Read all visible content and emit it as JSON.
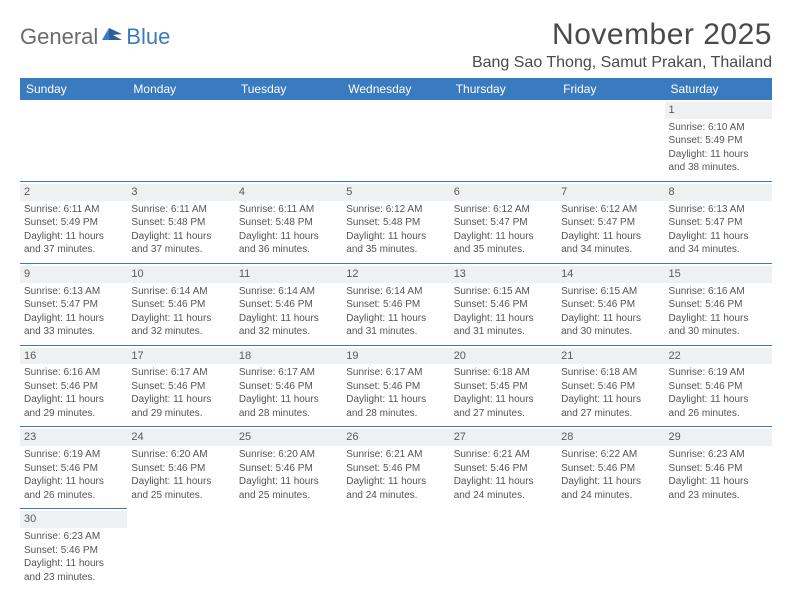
{
  "logo": {
    "general": "General",
    "blue": "Blue"
  },
  "title": "November 2025",
  "location": "Bang Sao Thong, Samut Prakan, Thailand",
  "colors": {
    "header_bg": "#3a7bc0",
    "header_text": "#ffffff",
    "daynum_bg": "#eef0f2",
    "border": "#3a7bc0",
    "body_text": "#555555",
    "title_text": "#4a4a4a",
    "logo_gray": "#6b6b6b",
    "logo_blue": "#3a7bc0",
    "background": "#ffffff"
  },
  "typography": {
    "title_fontsize": 30,
    "location_fontsize": 16,
    "header_fontsize": 12,
    "cell_fontsize": 10,
    "daynum_fontsize": 11
  },
  "day_headers": [
    "Sunday",
    "Monday",
    "Tuesday",
    "Wednesday",
    "Thursday",
    "Friday",
    "Saturday"
  ],
  "weeks": [
    [
      null,
      null,
      null,
      null,
      null,
      null,
      {
        "n": "1",
        "sr": "Sunrise: 6:10 AM",
        "ss": "Sunset: 5:49 PM",
        "dl1": "Daylight: 11 hours",
        "dl2": "and 38 minutes."
      }
    ],
    [
      {
        "n": "2",
        "sr": "Sunrise: 6:11 AM",
        "ss": "Sunset: 5:49 PM",
        "dl1": "Daylight: 11 hours",
        "dl2": "and 37 minutes."
      },
      {
        "n": "3",
        "sr": "Sunrise: 6:11 AM",
        "ss": "Sunset: 5:48 PM",
        "dl1": "Daylight: 11 hours",
        "dl2": "and 37 minutes."
      },
      {
        "n": "4",
        "sr": "Sunrise: 6:11 AM",
        "ss": "Sunset: 5:48 PM",
        "dl1": "Daylight: 11 hours",
        "dl2": "and 36 minutes."
      },
      {
        "n": "5",
        "sr": "Sunrise: 6:12 AM",
        "ss": "Sunset: 5:48 PM",
        "dl1": "Daylight: 11 hours",
        "dl2": "and 35 minutes."
      },
      {
        "n": "6",
        "sr": "Sunrise: 6:12 AM",
        "ss": "Sunset: 5:47 PM",
        "dl1": "Daylight: 11 hours",
        "dl2": "and 35 minutes."
      },
      {
        "n": "7",
        "sr": "Sunrise: 6:12 AM",
        "ss": "Sunset: 5:47 PM",
        "dl1": "Daylight: 11 hours",
        "dl2": "and 34 minutes."
      },
      {
        "n": "8",
        "sr": "Sunrise: 6:13 AM",
        "ss": "Sunset: 5:47 PM",
        "dl1": "Daylight: 11 hours",
        "dl2": "and 34 minutes."
      }
    ],
    [
      {
        "n": "9",
        "sr": "Sunrise: 6:13 AM",
        "ss": "Sunset: 5:47 PM",
        "dl1": "Daylight: 11 hours",
        "dl2": "and 33 minutes."
      },
      {
        "n": "10",
        "sr": "Sunrise: 6:14 AM",
        "ss": "Sunset: 5:46 PM",
        "dl1": "Daylight: 11 hours",
        "dl2": "and 32 minutes."
      },
      {
        "n": "11",
        "sr": "Sunrise: 6:14 AM",
        "ss": "Sunset: 5:46 PM",
        "dl1": "Daylight: 11 hours",
        "dl2": "and 32 minutes."
      },
      {
        "n": "12",
        "sr": "Sunrise: 6:14 AM",
        "ss": "Sunset: 5:46 PM",
        "dl1": "Daylight: 11 hours",
        "dl2": "and 31 minutes."
      },
      {
        "n": "13",
        "sr": "Sunrise: 6:15 AM",
        "ss": "Sunset: 5:46 PM",
        "dl1": "Daylight: 11 hours",
        "dl2": "and 31 minutes."
      },
      {
        "n": "14",
        "sr": "Sunrise: 6:15 AM",
        "ss": "Sunset: 5:46 PM",
        "dl1": "Daylight: 11 hours",
        "dl2": "and 30 minutes."
      },
      {
        "n": "15",
        "sr": "Sunrise: 6:16 AM",
        "ss": "Sunset: 5:46 PM",
        "dl1": "Daylight: 11 hours",
        "dl2": "and 30 minutes."
      }
    ],
    [
      {
        "n": "16",
        "sr": "Sunrise: 6:16 AM",
        "ss": "Sunset: 5:46 PM",
        "dl1": "Daylight: 11 hours",
        "dl2": "and 29 minutes."
      },
      {
        "n": "17",
        "sr": "Sunrise: 6:17 AM",
        "ss": "Sunset: 5:46 PM",
        "dl1": "Daylight: 11 hours",
        "dl2": "and 29 minutes."
      },
      {
        "n": "18",
        "sr": "Sunrise: 6:17 AM",
        "ss": "Sunset: 5:46 PM",
        "dl1": "Daylight: 11 hours",
        "dl2": "and 28 minutes."
      },
      {
        "n": "19",
        "sr": "Sunrise: 6:17 AM",
        "ss": "Sunset: 5:46 PM",
        "dl1": "Daylight: 11 hours",
        "dl2": "and 28 minutes."
      },
      {
        "n": "20",
        "sr": "Sunrise: 6:18 AM",
        "ss": "Sunset: 5:45 PM",
        "dl1": "Daylight: 11 hours",
        "dl2": "and 27 minutes."
      },
      {
        "n": "21",
        "sr": "Sunrise: 6:18 AM",
        "ss": "Sunset: 5:46 PM",
        "dl1": "Daylight: 11 hours",
        "dl2": "and 27 minutes."
      },
      {
        "n": "22",
        "sr": "Sunrise: 6:19 AM",
        "ss": "Sunset: 5:46 PM",
        "dl1": "Daylight: 11 hours",
        "dl2": "and 26 minutes."
      }
    ],
    [
      {
        "n": "23",
        "sr": "Sunrise: 6:19 AM",
        "ss": "Sunset: 5:46 PM",
        "dl1": "Daylight: 11 hours",
        "dl2": "and 26 minutes."
      },
      {
        "n": "24",
        "sr": "Sunrise: 6:20 AM",
        "ss": "Sunset: 5:46 PM",
        "dl1": "Daylight: 11 hours",
        "dl2": "and 25 minutes."
      },
      {
        "n": "25",
        "sr": "Sunrise: 6:20 AM",
        "ss": "Sunset: 5:46 PM",
        "dl1": "Daylight: 11 hours",
        "dl2": "and 25 minutes."
      },
      {
        "n": "26",
        "sr": "Sunrise: 6:21 AM",
        "ss": "Sunset: 5:46 PM",
        "dl1": "Daylight: 11 hours",
        "dl2": "and 24 minutes."
      },
      {
        "n": "27",
        "sr": "Sunrise: 6:21 AM",
        "ss": "Sunset: 5:46 PM",
        "dl1": "Daylight: 11 hours",
        "dl2": "and 24 minutes."
      },
      {
        "n": "28",
        "sr": "Sunrise: 6:22 AM",
        "ss": "Sunset: 5:46 PM",
        "dl1": "Daylight: 11 hours",
        "dl2": "and 24 minutes."
      },
      {
        "n": "29",
        "sr": "Sunrise: 6:23 AM",
        "ss": "Sunset: 5:46 PM",
        "dl1": "Daylight: 11 hours",
        "dl2": "and 23 minutes."
      }
    ],
    [
      {
        "n": "30",
        "sr": "Sunrise: 6:23 AM",
        "ss": "Sunset: 5:46 PM",
        "dl1": "Daylight: 11 hours",
        "dl2": "and 23 minutes."
      },
      null,
      null,
      null,
      null,
      null,
      null
    ]
  ]
}
